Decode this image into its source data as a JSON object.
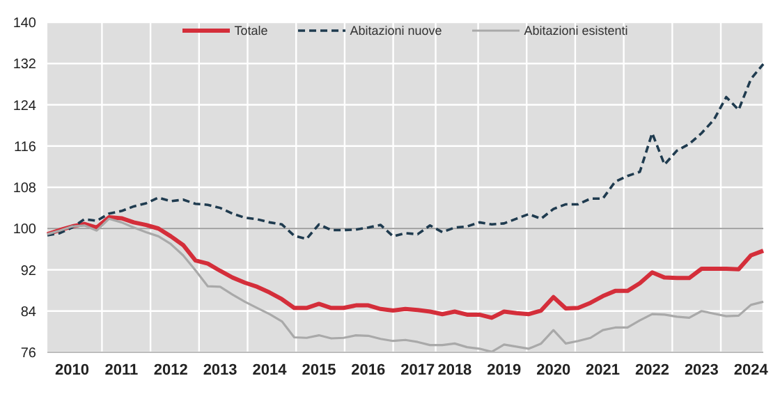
{
  "chart_data": {
    "type": "line",
    "categories": [
      null,
      null,
      "2010",
      null,
      null,
      null,
      "2011",
      null,
      null,
      null,
      "2012",
      null,
      null,
      null,
      "2013",
      null,
      null,
      null,
      "2014",
      null,
      null,
      null,
      "2015",
      null,
      null,
      null,
      "2016",
      null,
      null,
      null,
      "2017",
      null,
      null,
      "2018",
      null,
      null,
      null,
      "2019",
      null,
      null,
      null,
      "2020",
      null,
      null,
      null,
      "2021",
      null,
      null,
      null,
      "2022",
      null,
      null,
      null,
      "2023",
      null,
      null,
      null,
      "2024",
      null
    ],
    "series": [
      {
        "name": "Totale",
        "color": "#d42e3a",
        "line_style": "solid",
        "values": [
          98.9,
          99.7,
          100.4,
          100.9,
          100.2,
          102.2,
          102,
          101.2,
          100.7,
          100,
          98.5,
          96.8,
          93.8,
          93.2,
          91.8,
          90.5,
          89.5,
          88.7,
          87.6,
          86.3,
          84.6,
          84.6,
          85.4,
          84.6,
          84.6,
          85.1,
          85.1,
          84.4,
          84.1,
          84.4,
          84.2,
          83.9,
          83.4,
          83.9,
          83.3,
          83.3,
          82.7,
          83.9,
          83.6,
          83.4,
          84.1,
          86.7,
          84.5,
          84.6,
          85.6,
          86.9,
          87.9,
          87.9,
          89.4,
          91.5,
          90.5,
          90.4,
          90.4,
          92.2,
          92.2,
          92.2,
          92.1,
          94.8,
          95.7
        ]
      },
      {
        "name": "Abitazioni nuove",
        "color": "#1f3b4f",
        "line_style": "dashed",
        "values": [
          98.7,
          99.1,
          100.2,
          101.8,
          101.5,
          102.9,
          103.4,
          104.3,
          104.9,
          106,
          105.3,
          105.6,
          104.8,
          104.6,
          104,
          102.9,
          102.1,
          101.8,
          101.2,
          100.8,
          98.6,
          98,
          100.8,
          99.7,
          99.7,
          99.8,
          100.2,
          100.7,
          98.5,
          99.1,
          98.9,
          100.6,
          99.3,
          100.2,
          100.4,
          101.2,
          100.8,
          101,
          101.9,
          102.8,
          101.9,
          103.8,
          104.7,
          104.7,
          105.8,
          105.8,
          109.1,
          110.2,
          111,
          118.5,
          112.4,
          115.1,
          116.4,
          118.5,
          121.1,
          125.5,
          123,
          129,
          131.9
        ]
      },
      {
        "name": "Abitazioni esistenti",
        "color": "#a9a9a9",
        "line_style": "solid",
        "values": [
          98.9,
          99.6,
          100.4,
          100.6,
          99.6,
          101.9,
          101.2,
          100.2,
          99.3,
          98.5,
          97,
          94.8,
          91.9,
          88.8,
          88.7,
          87.2,
          85.8,
          84.6,
          83.4,
          82,
          78.9,
          78.8,
          79.3,
          78.7,
          78.8,
          79.3,
          79.2,
          78.6,
          78.2,
          78.4,
          78,
          77.4,
          77.4,
          77.7,
          77,
          76.7,
          76.1,
          77.5,
          77.1,
          76.7,
          77.7,
          80.3,
          77.7,
          78.2,
          78.8,
          80.3,
          80.8,
          80.8,
          82.2,
          83.4,
          83.3,
          82.9,
          82.7,
          84,
          83.5,
          83,
          83.1,
          85.2,
          85.8
        ]
      }
    ],
    "ylim": [
      76,
      140
    ],
    "yticks": [
      76,
      84,
      92,
      100,
      108,
      116,
      124,
      132,
      140
    ],
    "ref_lines": [
      {
        "axis": "y",
        "value": 100,
        "color": "#9a9a9a"
      }
    ],
    "grid": true,
    "legend": "top",
    "marker": "none"
  }
}
